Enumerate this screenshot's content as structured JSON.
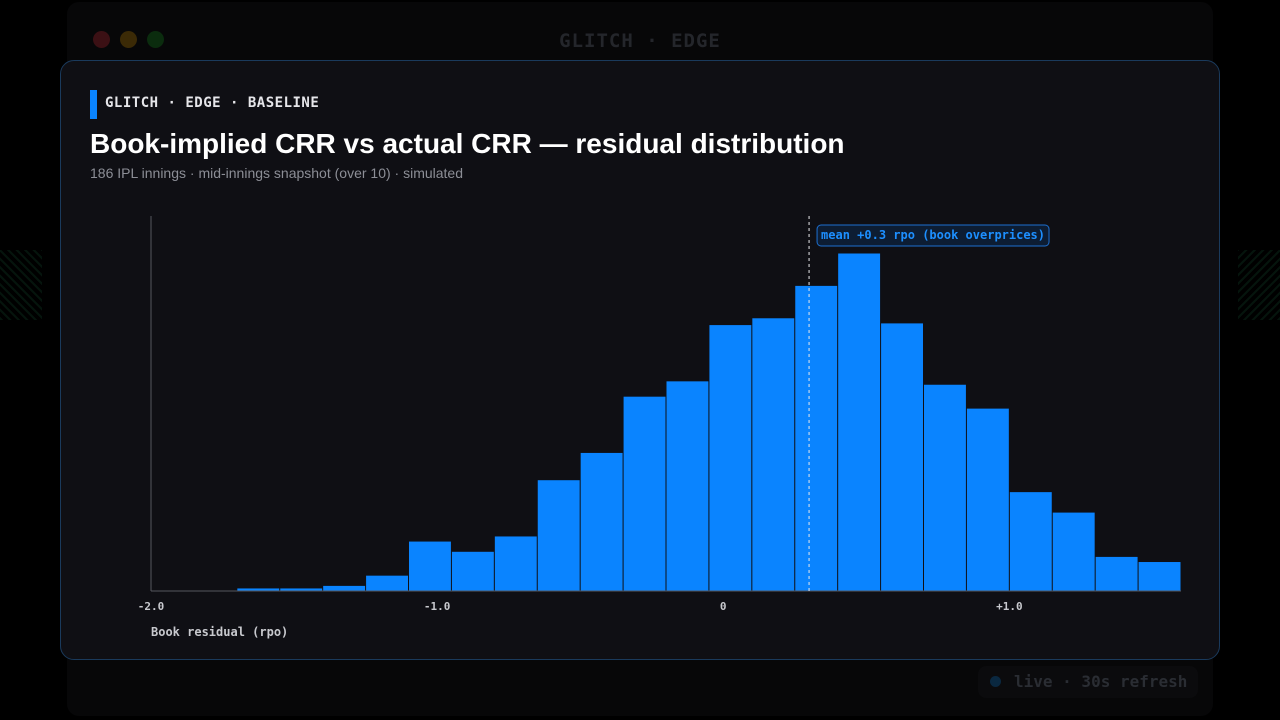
{
  "window": {
    "title": "GLITCH · EDGE",
    "status": "live · 30s refresh"
  },
  "card": {
    "kicker": "GLITCH · EDGE · BASELINE",
    "title": "Book-implied CRR vs actual CRR — residual distribution",
    "subtitle": "186 IPL innings · mid-innings snapshot (over 10) · simulated"
  },
  "colors": {
    "accent": "#0a84ff",
    "bar": "#0a84ff",
    "card_border": "#1a3a5c",
    "background": "#0f0f14"
  },
  "chart_data": {
    "type": "bar",
    "xlabel": "Book residual (rpo)",
    "ylabel": "",
    "xlim": [
      -2.0,
      1.6
    ],
    "ylim": [
      0,
      22
    ],
    "bin_width": 0.15,
    "bins": [
      {
        "x0": -2.0,
        "x1": -1.85,
        "count": 0
      },
      {
        "x0": -1.85,
        "x1": -1.7,
        "count": 0
      },
      {
        "x0": -1.7,
        "x1": -1.55,
        "count": 0.15
      },
      {
        "x0": -1.55,
        "x1": -1.4,
        "count": 0.15
      },
      {
        "x0": -1.4,
        "x1": -1.25,
        "count": 0.3
      },
      {
        "x0": -1.25,
        "x1": -1.1,
        "count": 0.9
      },
      {
        "x0": -1.1,
        "x1": -0.95,
        "count": 2.9
      },
      {
        "x0": -0.95,
        "x1": -0.8,
        "count": 2.3
      },
      {
        "x0": -0.8,
        "x1": -0.65,
        "count": 3.2
      },
      {
        "x0": -0.65,
        "x1": -0.5,
        "count": 6.5
      },
      {
        "x0": -0.5,
        "x1": -0.35,
        "count": 8.1
      },
      {
        "x0": -0.35,
        "x1": -0.2,
        "count": 11.4
      },
      {
        "x0": -0.2,
        "x1": -0.05,
        "count": 12.3
      },
      {
        "x0": -0.05,
        "x1": 0.1,
        "count": 15.6
      },
      {
        "x0": 0.1,
        "x1": 0.25,
        "count": 16.0
      },
      {
        "x0": 0.25,
        "x1": 0.4,
        "count": 17.9
      },
      {
        "x0": 0.4,
        "x1": 0.55,
        "count": 19.8
      },
      {
        "x0": 0.55,
        "x1": 0.7,
        "count": 15.7
      },
      {
        "x0": 0.7,
        "x1": 0.85,
        "count": 12.1
      },
      {
        "x0": 0.85,
        "x1": 1.0,
        "count": 10.7
      },
      {
        "x0": 1.0,
        "x1": 1.15,
        "count": 5.8
      },
      {
        "x0": 1.15,
        "x1": 1.3,
        "count": 4.6
      },
      {
        "x0": 1.3,
        "x1": 1.45,
        "count": 2.0
      },
      {
        "x0": 1.45,
        "x1": 1.6,
        "count": 1.7
      }
    ],
    "x_ticks": [
      {
        "value": -2.0,
        "label": "-2.0"
      },
      {
        "value": -1.0,
        "label": "-1.0"
      },
      {
        "value": 0,
        "label": "0"
      },
      {
        "value": 1.0,
        "label": "+1.0"
      }
    ],
    "mean_line": {
      "value": 0.3,
      "label": "mean +0.3 rpo (book overprices)"
    },
    "grid": false,
    "legend": "none"
  }
}
